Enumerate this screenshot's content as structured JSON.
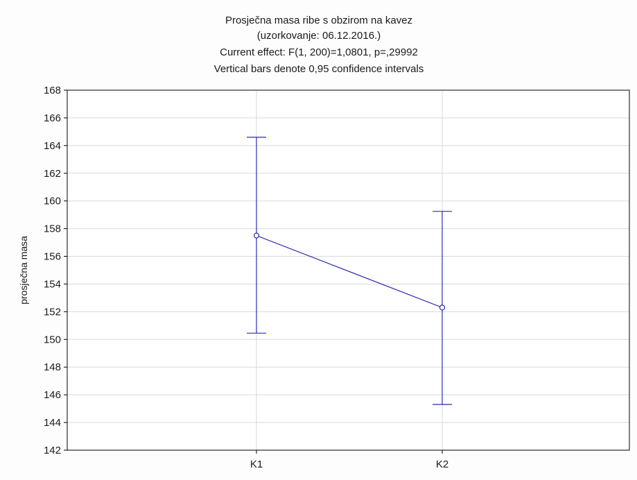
{
  "chart_data": {
    "type": "line",
    "title_lines": [
      "Prosječna masa ribe s obzirom na kavez",
      "(uzorkovanje: 06.12.2016.)",
      "Current effect: F(1, 200)=1,0801, p=,29992",
      "Vertical bars denote 0,95 confidence intervals"
    ],
    "xlabel": "",
    "ylabel": "prosječna masa",
    "categories": [
      "K1",
      "K2"
    ],
    "series": [
      {
        "name": "",
        "values": [
          157.5,
          152.3
        ],
        "ci_low": [
          150.45,
          145.3
        ],
        "ci_high": [
          164.6,
          159.25
        ]
      }
    ],
    "ylim": [
      142,
      168
    ],
    "yticks": [
      142,
      144,
      146,
      148,
      150,
      152,
      154,
      156,
      158,
      160,
      162,
      164,
      166,
      168
    ],
    "grid": true,
    "legend": "none",
    "colors": {
      "series": "#2b2bb3",
      "grid": "#d9d9d9",
      "axis": "#000000",
      "background": "#ffffff"
    }
  }
}
